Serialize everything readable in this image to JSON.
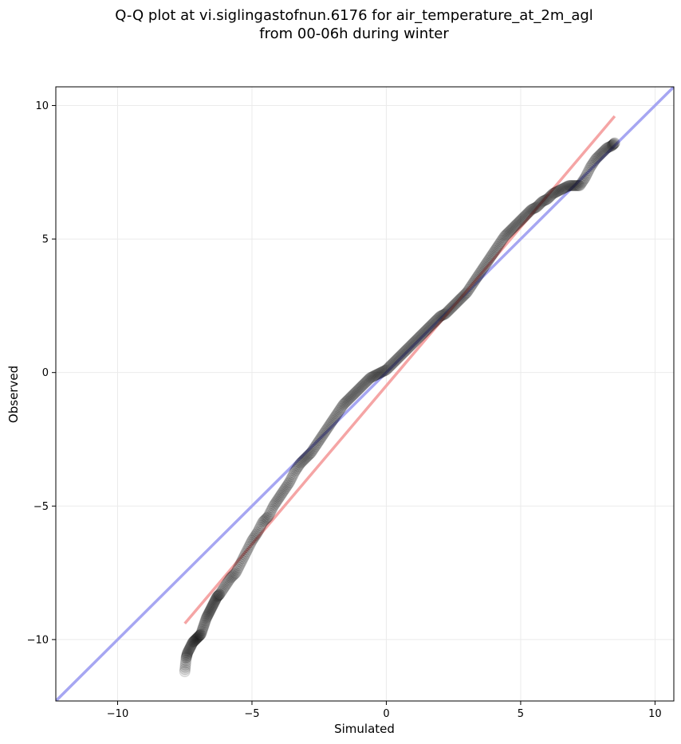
{
  "chart_data": {
    "type": "scatter",
    "title_lines": [
      "Q-Q plot at vi.siglingastofnun.6176 for air_temperature_at_2m_agl",
      "from 00-06h during winter"
    ],
    "xlabel": "Simulated",
    "ylabel": "Observed",
    "xlim": [
      -12.3,
      10.7
    ],
    "ylim": [
      -12.3,
      10.7
    ],
    "xticks": [
      -10,
      -5,
      0,
      5,
      10
    ],
    "yticks": [
      -10,
      -5,
      0,
      5,
      10
    ],
    "xtick_labels": [
      "−10",
      "−5",
      "0",
      "5",
      "10"
    ],
    "ytick_labels": [
      "−10",
      "−5",
      "0",
      "5",
      "10"
    ],
    "grid": true,
    "lines": [
      {
        "name": "",
        "color": "#a6a6f2",
        "x": [
          -12.3,
          10.7
        ],
        "y": [
          -12.3,
          10.7
        ]
      },
      {
        "name": "",
        "color": "#f5a5a5",
        "x": [
          -7.5,
          8.5
        ],
        "y": [
          -9.4,
          9.6
        ]
      }
    ],
    "quantiles": {
      "sim": [
        -7.5,
        -7.45,
        -7.4,
        -7.3,
        -7.2,
        -7.1,
        -7.0,
        -6.9,
        -6.8,
        -6.7,
        -6.6,
        -6.5,
        -6.4,
        -6.3,
        -6.2,
        -6.0,
        -5.8,
        -5.6,
        -5.4,
        -5.2,
        -5.0,
        -4.8,
        -4.6,
        -4.4,
        -4.2,
        -4.0,
        -3.8,
        -3.6,
        -3.4,
        -3.2,
        -3.0,
        -2.8,
        -2.6,
        -2.4,
        -2.2,
        -2.0,
        -1.8,
        -1.6,
        -1.4,
        -1.2,
        -1.0,
        -0.8,
        -0.6,
        -0.4,
        -0.2,
        0.0,
        0.2,
        0.4,
        0.6,
        0.8,
        1.0,
        1.2,
        1.4,
        1.6,
        1.8,
        2.0,
        2.2,
        2.4,
        2.6,
        2.8,
        3.0,
        3.2,
        3.4,
        3.6,
        3.8,
        4.0,
        4.2,
        4.4,
        4.6,
        4.8,
        5.0,
        5.2,
        5.4,
        5.6,
        5.8,
        6.0,
        6.2,
        6.4,
        6.6,
        6.8,
        7.0,
        7.2,
        7.4,
        7.6,
        7.8,
        8.0,
        8.2,
        8.4,
        8.5
      ],
      "obs": [
        -11.2,
        -10.7,
        -10.5,
        -10.3,
        -10.1,
        -10.0,
        -9.9,
        -9.8,
        -9.5,
        -9.2,
        -9.0,
        -8.8,
        -8.6,
        -8.4,
        -8.3,
        -8.0,
        -7.7,
        -7.5,
        -7.1,
        -6.7,
        -6.3,
        -6.0,
        -5.6,
        -5.4,
        -5.0,
        -4.7,
        -4.4,
        -4.1,
        -3.7,
        -3.4,
        -3.2,
        -3.0,
        -2.7,
        -2.4,
        -2.1,
        -1.8,
        -1.5,
        -1.2,
        -1.0,
        -0.8,
        -0.6,
        -0.4,
        -0.2,
        -0.1,
        0.0,
        0.1,
        0.3,
        0.5,
        0.7,
        0.9,
        1.1,
        1.3,
        1.5,
        1.7,
        1.9,
        2.1,
        2.2,
        2.4,
        2.6,
        2.8,
        3.0,
        3.3,
        3.6,
        3.9,
        4.2,
        4.5,
        4.8,
        5.1,
        5.3,
        5.5,
        5.7,
        5.9,
        6.1,
        6.2,
        6.4,
        6.5,
        6.7,
        6.8,
        6.9,
        7.0,
        7.0,
        7.0,
        7.3,
        7.7,
        8.0,
        8.2,
        8.4,
        8.5,
        8.6
      ]
    }
  }
}
